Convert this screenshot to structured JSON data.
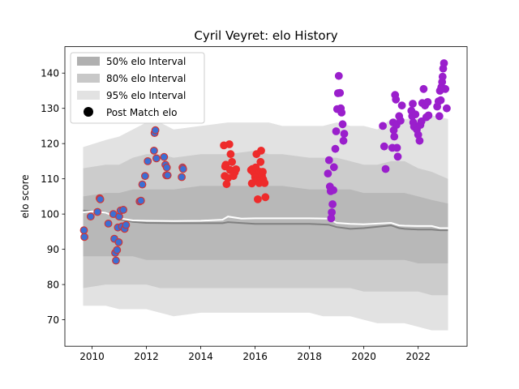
{
  "chart_data": {
    "type": "scatter",
    "title": "Cyril Veyret: elo History",
    "xlabel": "",
    "ylabel": "elo score",
    "xlim": [
      2009.0,
      2023.8
    ],
    "ylim": [
      62.5,
      147.5
    ],
    "x_ticks": [
      2010,
      2012,
      2014,
      2016,
      2018,
      2020,
      2022
    ],
    "x_tick_labels": [
      "2010",
      "2012",
      "2014",
      "2016",
      "2018",
      "2020",
      "2022"
    ],
    "y_ticks": [
      70,
      80,
      90,
      100,
      110,
      120,
      130,
      140
    ],
    "y_tick_labels": [
      "70",
      "80",
      "90",
      "100",
      "110",
      "120",
      "130",
      "140"
    ],
    "grid": false,
    "legend_position": "top-left",
    "legend": [
      {
        "label": "50% elo Interval",
        "kind": "band",
        "color": "#b0b0b0"
      },
      {
        "label": "80% elo Interval",
        "kind": "band",
        "color": "#c8c8c8"
      },
      {
        "label": "95% elo Interval",
        "kind": "band",
        "color": "#e2e2e2"
      },
      {
        "label": "Post Match elo",
        "kind": "marker",
        "color": "#000000"
      }
    ],
    "bands": {
      "x": [
        2009.67,
        2010.5,
        2011.0,
        2011.5,
        2012.0,
        2012.5,
        2013.0,
        2014.0,
        2015.0,
        2016.0,
        2016.5,
        2017.0,
        2018.0,
        2018.5,
        2019.0,
        2019.5,
        2020.0,
        2020.5,
        2021.0,
        2021.5,
        2022.0,
        2022.5,
        2023.1
      ],
      "p95_upper": [
        119,
        121,
        122,
        124,
        126,
        126,
        124,
        125,
        126,
        126,
        126,
        125,
        125,
        125,
        126,
        125,
        125,
        124,
        127,
        127,
        127,
        128,
        127
      ],
      "p95_lower": [
        74,
        74,
        73,
        73,
        73,
        72,
        71,
        72,
        72,
        72,
        72,
        72,
        72,
        71,
        71,
        71,
        70,
        69,
        69,
        69,
        68,
        67,
        67
      ],
      "p80_upper": [
        113,
        114,
        114,
        116,
        117,
        117,
        116,
        117,
        117,
        118,
        117,
        117,
        116,
        116,
        116,
        115,
        114,
        114,
        115,
        115,
        113,
        112,
        110
      ],
      "p80_lower": [
        79,
        80,
        80,
        80,
        80,
        79,
        79,
        79,
        79,
        79,
        79,
        79,
        79,
        79,
        79,
        79,
        78,
        78,
        78,
        78,
        78,
        77,
        77
      ],
      "p50_upper": [
        105,
        106,
        106,
        107,
        107,
        107,
        107,
        108,
        108,
        108,
        108,
        108,
        107,
        107,
        107,
        107,
        106,
        106,
        106,
        106,
        105,
        104,
        103
      ],
      "p50_lower": [
        88,
        88,
        88,
        88,
        87,
        87,
        87,
        87,
        87,
        87,
        87,
        87,
        87,
        87,
        87,
        87,
        87,
        87,
        87,
        87,
        86,
        86,
        86
      ]
    },
    "mean_line": {
      "color": "#ffffff",
      "x": [
        2009.67,
        2010.0,
        2010.5,
        2011.0,
        2011.5,
        2012.0,
        2013.0,
        2014.0,
        2014.8,
        2015.0,
        2015.5,
        2016.0,
        2017.0,
        2018.0,
        2018.7,
        2019.0,
        2019.5,
        2020.0,
        2021.0,
        2021.3,
        2021.5,
        2022.0,
        2022.5,
        2022.8,
        2023.1
      ],
      "y": [
        100.5,
        100.8,
        100.4,
        98.8,
        98.2,
        98.1,
        98.0,
        98.1,
        98.4,
        99.3,
        98.7,
        98.8,
        98.8,
        98.8,
        98.7,
        97.5,
        97.2,
        97.1,
        97.5,
        96.8,
        96.7,
        96.6,
        96.6,
        96.0,
        96.0
      ]
    },
    "median_line": {
      "color": "#808080",
      "x": [
        2009.67,
        2010.5,
        2011.0,
        2011.5,
        2012.0,
        2013.0,
        2014.0,
        2014.8,
        2015.0,
        2016.0,
        2017.0,
        2018.0,
        2018.7,
        2019.0,
        2019.5,
        2020.0,
        2021.0,
        2021.3,
        2021.5,
        2022.0,
        2022.5,
        2022.8,
        2023.1
      ],
      "y": [
        101.0,
        100.5,
        98.5,
        97.8,
        97.5,
        97.4,
        97.4,
        97.4,
        97.7,
        97.2,
        97.2,
        97.2,
        97.0,
        96.3,
        95.8,
        96.0,
        96.8,
        96.0,
        95.8,
        95.6,
        95.6,
        95.4,
        95.4
      ]
    },
    "series": [
      {
        "fill": "#3b6fd4",
        "edge": "#d03535",
        "x": [
          2009.7,
          2009.72,
          2009.95,
          2010.2,
          2010.28,
          2010.3,
          2010.6,
          2010.78,
          2010.82,
          2010.85,
          2010.88,
          2010.92,
          2010.95,
          2010.98,
          2011.0,
          2011.05,
          2011.1,
          2011.15,
          2011.2,
          2011.25,
          2011.75,
          2011.8,
          2011.85,
          2011.95,
          2012.05,
          2012.28,
          2012.3,
          2012.33,
          2012.37,
          2012.65,
          2012.7,
          2012.73,
          2012.75,
          2012.78,
          2013.3,
          2013.33,
          2013.35
        ],
        "y": [
          95.4,
          93.5,
          99.3,
          100.6,
          104.5,
          104.2,
          97.3,
          100.0,
          93.0,
          89.0,
          86.8,
          89.8,
          96.2,
          92.0,
          99.3,
          101.0,
          96.5,
          101.2,
          95.8,
          96.9,
          103.6,
          103.8,
          108.4,
          110.8,
          115.0,
          118.0,
          123.0,
          123.8,
          115.8,
          116.2,
          114.0,
          111.0,
          113.2,
          111.0,
          110.5,
          113.2,
          112.8
        ]
      },
      {
        "fill": "#ee2b2b",
        "edge": "#ee2b2b",
        "x": [
          2014.85,
          2014.88,
          2014.9,
          2014.92,
          2014.95,
          2015.0,
          2015.05,
          2015.08,
          2015.1,
          2015.15,
          2015.2,
          2015.25,
          2015.3,
          2015.85,
          2015.88,
          2015.9,
          2015.95,
          2016.0,
          2016.02,
          2016.05,
          2016.08,
          2016.1,
          2016.12,
          2016.15,
          2016.18,
          2016.2,
          2016.22,
          2016.25,
          2016.28,
          2016.3,
          2016.35,
          2016.38
        ],
        "y": [
          119.5,
          110.8,
          113.5,
          114.0,
          108.5,
          110.2,
          119.8,
          112.5,
          117.0,
          114.8,
          110.8,
          111.8,
          112.7,
          112.5,
          108.7,
          112.8,
          111.8,
          110.5,
          113.2,
          117.0,
          109.8,
          104.2,
          111.0,
          108.8,
          112.0,
          114.8,
          118.0,
          110.8,
          112.0,
          109.8,
          108.8,
          104.8
        ]
      },
      {
        "fill": "#9a1fcc",
        "edge": "#9a1fcc",
        "x": [
          2018.68,
          2018.72,
          2018.75,
          2018.78,
          2018.8,
          2018.82,
          2018.85,
          2018.88,
          2018.9,
          2018.95,
          2018.98,
          2019.02,
          2019.05,
          2019.08,
          2019.12,
          2019.15,
          2019.18,
          2019.22,
          2019.25,
          2019.28,
          2020.7,
          2020.75,
          2020.8,
          2021.05,
          2021.08,
          2021.1,
          2021.12,
          2021.15,
          2021.18,
          2021.2,
          2021.22,
          2021.25,
          2021.3,
          2021.35,
          2021.4,
          2021.75,
          2021.78,
          2021.8,
          2021.82,
          2021.85,
          2021.9,
          2021.95,
          2022.0,
          2022.05,
          2022.08,
          2022.12,
          2022.15,
          2022.2,
          2022.25,
          2022.3,
          2022.35,
          2022.38,
          2022.7,
          2022.75,
          2022.78,
          2022.8,
          2022.83,
          2022.85,
          2022.88,
          2022.9,
          2022.92,
          2022.95,
          2023.0,
          2023.05
        ],
        "y": [
          111.5,
          115.3,
          107.8,
          106.5,
          98.8,
          100.5,
          102.8,
          106.8,
          113.3,
          118.5,
          123.5,
          129.8,
          134.3,
          139.2,
          134.4,
          130.0,
          128.8,
          125.5,
          120.8,
          122.8,
          125.0,
          119.2,
          112.8,
          118.8,
          126.0,
          123.8,
          122.0,
          133.8,
          132.5,
          125.3,
          118.8,
          116.3,
          127.8,
          126.5,
          130.8,
          129.3,
          127.8,
          131.3,
          126.0,
          124.8,
          128.3,
          124.0,
          122.5,
          120.8,
          125.3,
          126.3,
          131.5,
          135.5,
          130.8,
          127.5,
          131.8,
          128.0,
          130.5,
          132.0,
          127.8,
          135.0,
          132.3,
          136.0,
          137.5,
          139.0,
          141.3,
          142.8,
          135.5,
          130.0
        ]
      }
    ]
  }
}
